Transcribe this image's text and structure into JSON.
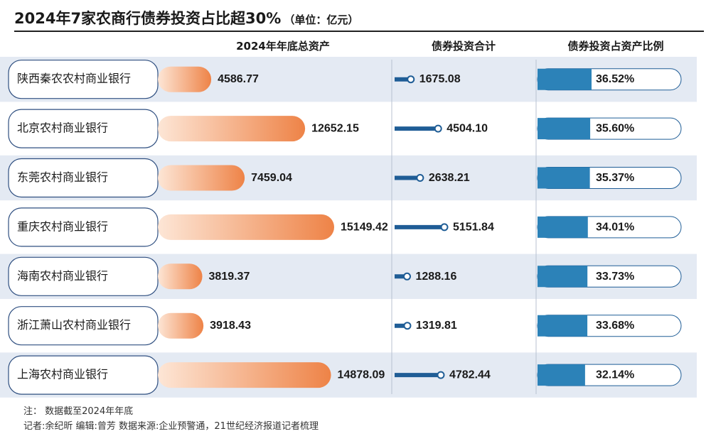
{
  "title": "2024年7家农商行债券投资占比超30%",
  "unit": "（单位：亿元）",
  "headers": {
    "assets": "2024年年底总资产",
    "bonds": "债券投资合计",
    "ratio": "债券投资占资产比例"
  },
  "colors": {
    "asset_bar_start": "#fde6d6",
    "asset_bar_end": "#ee8347",
    "bond_line": "#1f5d96",
    "ratio_bar": "#2c82b8",
    "row_band": "#e4eaf3",
    "label_border": "#2f4f80"
  },
  "chart_data": {
    "type": "table",
    "categories": [
      "陕西秦农农村商业银行",
      "北京农村商业银行",
      "东莞农村商业银行",
      "重庆农村商业银行",
      "海南农村商业银行",
      "浙江萧山农村商业银行",
      "上海农村商业银行"
    ],
    "series": [
      {
        "name": "2024年年底总资产",
        "values": [
          4586.77,
          12652.15,
          7459.04,
          15149.42,
          3819.37,
          3918.43,
          14878.09
        ],
        "labels": [
          "4586.77",
          "12652.15",
          "7459.04",
          "15149.42",
          "3819.37",
          "3918.43",
          "14878.09"
        ]
      },
      {
        "name": "债券投资合计",
        "values": [
          1675.08,
          4504.1,
          2638.21,
          5151.84,
          1288.16,
          1319.81,
          4782.44
        ],
        "labels": [
          "1675.08",
          "4504.10",
          "2638.21",
          "5151.84",
          "1288.16",
          "1319.81",
          "4782.44"
        ]
      },
      {
        "name": "债券投资占资产比例",
        "values": [
          36.52,
          35.6,
          35.37,
          34.01,
          33.73,
          33.68,
          32.14
        ],
        "labels": [
          "36.52%",
          "35.60%",
          "35.37%",
          "34.01%",
          "33.73%",
          "33.68%",
          "32.14%"
        ]
      }
    ],
    "ranges": {
      "assets": [
        0,
        15149.42
      ],
      "bonds": [
        0,
        5151.84
      ],
      "ratio": [
        0,
        36.52
      ]
    },
    "title": "2024年7家农商行债券投资占比超30%",
    "unit": "单位：亿元"
  },
  "footnote": "注：  数据截至2024年年底",
  "credits": "记者:余纪昕   编辑:曾芳   数据来源:企业预警通，21世纪经济报道记者梳理"
}
